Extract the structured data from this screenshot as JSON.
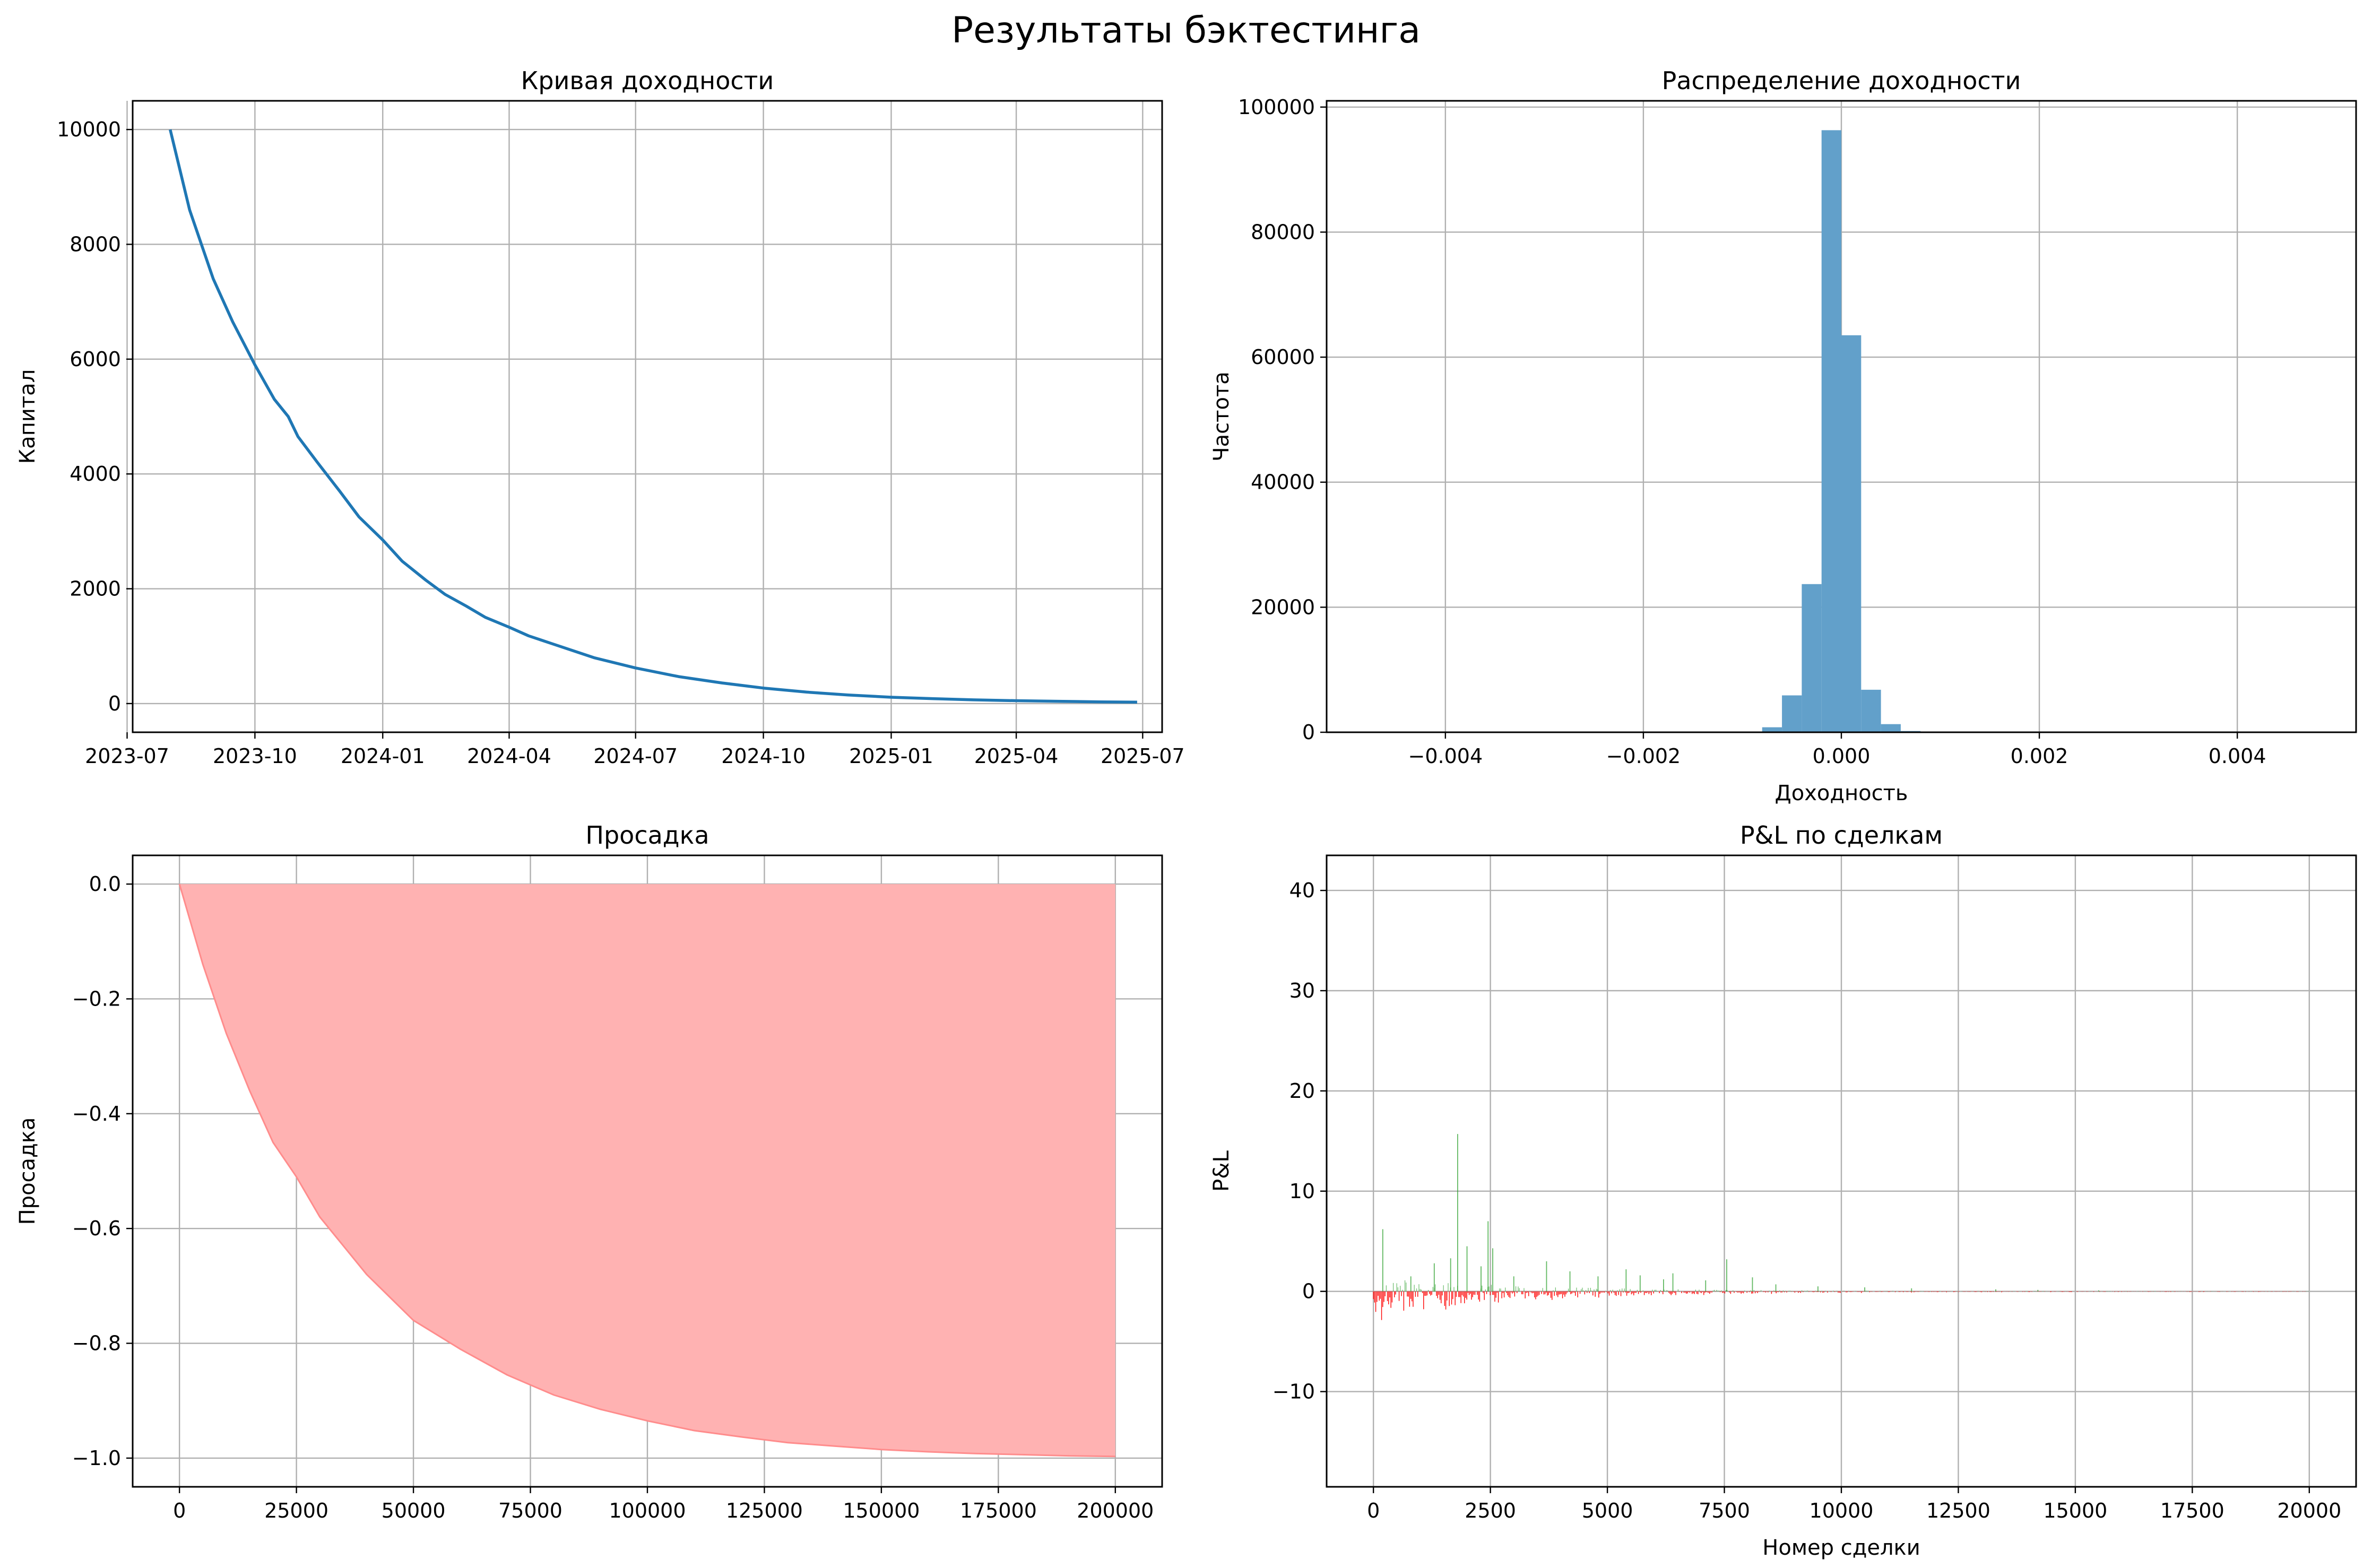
{
  "figure": {
    "suptitle": "Результаты бэктестинга"
  },
  "colors": {
    "equity_line": "#1f77b4",
    "histogram": "#62a0ca",
    "drawdown_fill": "#ffb2b2",
    "drawdown_line": "#ff8c8c",
    "pnl_positive": "#2ca02c",
    "pnl_negative": "#ff0000",
    "grid": "#b0b0b0"
  },
  "chart_data": [
    {
      "id": "equity",
      "type": "line",
      "title": "Кривая доходности",
      "xlabel": "",
      "ylabel": "Капитал",
      "xaxis": "date",
      "xlim": [
        "2023-07-05",
        "2025-07-15"
      ],
      "ylim": [
        -500,
        10500
      ],
      "grid": true,
      "xticks": [
        "2023-07",
        "2023-10",
        "2024-01",
        "2024-04",
        "2024-07",
        "2024-10",
        "2025-01",
        "2025-04",
        "2025-07"
      ],
      "yticks": [
        "0",
        "2000",
        "4000",
        "6000",
        "8000",
        "10000"
      ],
      "series": [
        {
          "x": [
            "2023-08-01",
            "2023-08-15",
            "2023-09-01",
            "2023-09-15",
            "2023-10-01",
            "2023-10-15",
            "2023-10-25",
            "2023-11-01",
            "2023-11-15",
            "2023-12-01",
            "2023-12-15",
            "2024-01-01",
            "2024-01-15",
            "2024-02-01",
            "2024-02-15",
            "2024-03-01",
            "2024-03-15",
            "2024-04-01",
            "2024-04-15",
            "2024-05-01",
            "2024-06-01",
            "2024-07-01",
            "2024-08-01",
            "2024-09-01",
            "2024-10-01",
            "2024-11-01",
            "2024-12-01",
            "2025-01-01",
            "2025-02-01",
            "2025-03-01",
            "2025-04-01",
            "2025-05-01",
            "2025-06-01",
            "2025-06-27"
          ],
          "y": [
            10000,
            8600,
            7400,
            6650,
            5900,
            5300,
            5000,
            4650,
            4200,
            3700,
            3250,
            2850,
            2480,
            2150,
            1900,
            1700,
            1500,
            1330,
            1180,
            1050,
            800,
            620,
            470,
            360,
            270,
            200,
            150,
            110,
            85,
            65,
            50,
            40,
            30,
            25
          ]
        }
      ]
    },
    {
      "id": "returns-hist",
      "type": "bar",
      "title": "Распределение доходности",
      "xlabel": "Доходность",
      "ylabel": "Частота",
      "xlim": [
        -0.0052,
        0.0052
      ],
      "ylim": [
        0,
        101000
      ],
      "grid": true,
      "xticks": [
        "−0.004",
        "−0.002",
        "0.000",
        "0.002",
        "0.004"
      ],
      "yticks": [
        "0",
        "20000",
        "40000",
        "60000",
        "80000",
        "100000"
      ],
      "bins": [
        {
          "x0": -0.001,
          "x1": -0.0008,
          "count": 80
        },
        {
          "x0": -0.0008,
          "x1": -0.0006,
          "count": 800
        },
        {
          "x0": -0.0006,
          "x1": -0.0004,
          "count": 5900
        },
        {
          "x0": -0.0004,
          "x1": -0.0002,
          "count": 23700
        },
        {
          "x0": -0.0002,
          "x1": 0.0,
          "count": 96300
        },
        {
          "x0": 0.0,
          "x1": 0.0002,
          "count": 63500
        },
        {
          "x0": 0.0002,
          "x1": 0.0004,
          "count": 6800
        },
        {
          "x0": 0.0004,
          "x1": 0.0006,
          "count": 1300
        },
        {
          "x0": 0.0006,
          "x1": 0.0008,
          "count": 200
        }
      ]
    },
    {
      "id": "drawdown",
      "type": "area",
      "title": "Просадка",
      "xlabel": "",
      "ylabel": "Просадка",
      "xlim": [
        -10000,
        210000
      ],
      "ylim": [
        -1.05,
        0.05
      ],
      "grid": true,
      "xticks": [
        "0",
        "25000",
        "50000",
        "75000",
        "100000",
        "125000",
        "150000",
        "175000",
        "200000"
      ],
      "yticks": [
        "−1.0",
        "−0.8",
        "−0.6",
        "−0.4",
        "−0.2",
        "0.0"
      ],
      "series": [
        {
          "x": [
            0,
            5000,
            10000,
            15000,
            20000,
            25000,
            30000,
            35000,
            40000,
            45000,
            50000,
            60000,
            70000,
            80000,
            90000,
            100000,
            110000,
            120000,
            130000,
            140000,
            150000,
            160000,
            170000,
            180000,
            190000,
            200000
          ],
          "y": [
            0,
            -0.14,
            -0.26,
            -0.36,
            -0.45,
            -0.51,
            -0.58,
            -0.63,
            -0.68,
            -0.72,
            -0.76,
            -0.81,
            -0.855,
            -0.89,
            -0.915,
            -0.935,
            -0.952,
            -0.963,
            -0.973,
            -0.979,
            -0.985,
            -0.989,
            -0.992,
            -0.994,
            -0.996,
            -0.997
          ]
        }
      ]
    },
    {
      "id": "pnl",
      "type": "bar",
      "title": "P&L по сделкам",
      "xlabel": "Номер сделки",
      "ylabel": "P&L",
      "xlim": [
        -1000,
        21000
      ],
      "ylim": [
        -19.5,
        43.5
      ],
      "grid": true,
      "xticks": [
        "0",
        "2500",
        "5000",
        "7500",
        "10000",
        "12500",
        "15000",
        "17500",
        "20000"
      ],
      "yticks": [
        "−10",
        "0",
        "10",
        "20",
        "30",
        "40"
      ],
      "spikes": [
        {
          "x": 200,
          "v": 6.2
        },
        {
          "x": 800,
          "v": 1.5
        },
        {
          "x": 1300,
          "v": 2.8
        },
        {
          "x": 1650,
          "v": 3.3
        },
        {
          "x": 1800,
          "v": 15.7
        },
        {
          "x": 2000,
          "v": 4.5
        },
        {
          "x": 2300,
          "v": 2.5
        },
        {
          "x": 2450,
          "v": 7.0
        },
        {
          "x": 2550,
          "v": 4.3
        },
        {
          "x": 3000,
          "v": 1.5
        },
        {
          "x": 3700,
          "v": 3.0
        },
        {
          "x": 4200,
          "v": 2.0
        },
        {
          "x": 4800,
          "v": 1.5
        },
        {
          "x": 5400,
          "v": 2.2
        },
        {
          "x": 5700,
          "v": 1.6
        },
        {
          "x": 6200,
          "v": 1.2
        },
        {
          "x": 6400,
          "v": 1.8
        },
        {
          "x": 7100,
          "v": 1.1
        },
        {
          "x": 7550,
          "v": 3.2
        },
        {
          "x": 8100,
          "v": 1.4
        },
        {
          "x": 8600,
          "v": 0.7
        },
        {
          "x": 9500,
          "v": 0.5
        },
        {
          "x": 10500,
          "v": 0.4
        },
        {
          "x": 11500,
          "v": 0.3
        },
        {
          "x": 13300,
          "v": 0.2
        },
        {
          "x": 14200,
          "v": 0.15
        },
        {
          "x": 15500,
          "v": 0.1
        }
      ]
    }
  ]
}
